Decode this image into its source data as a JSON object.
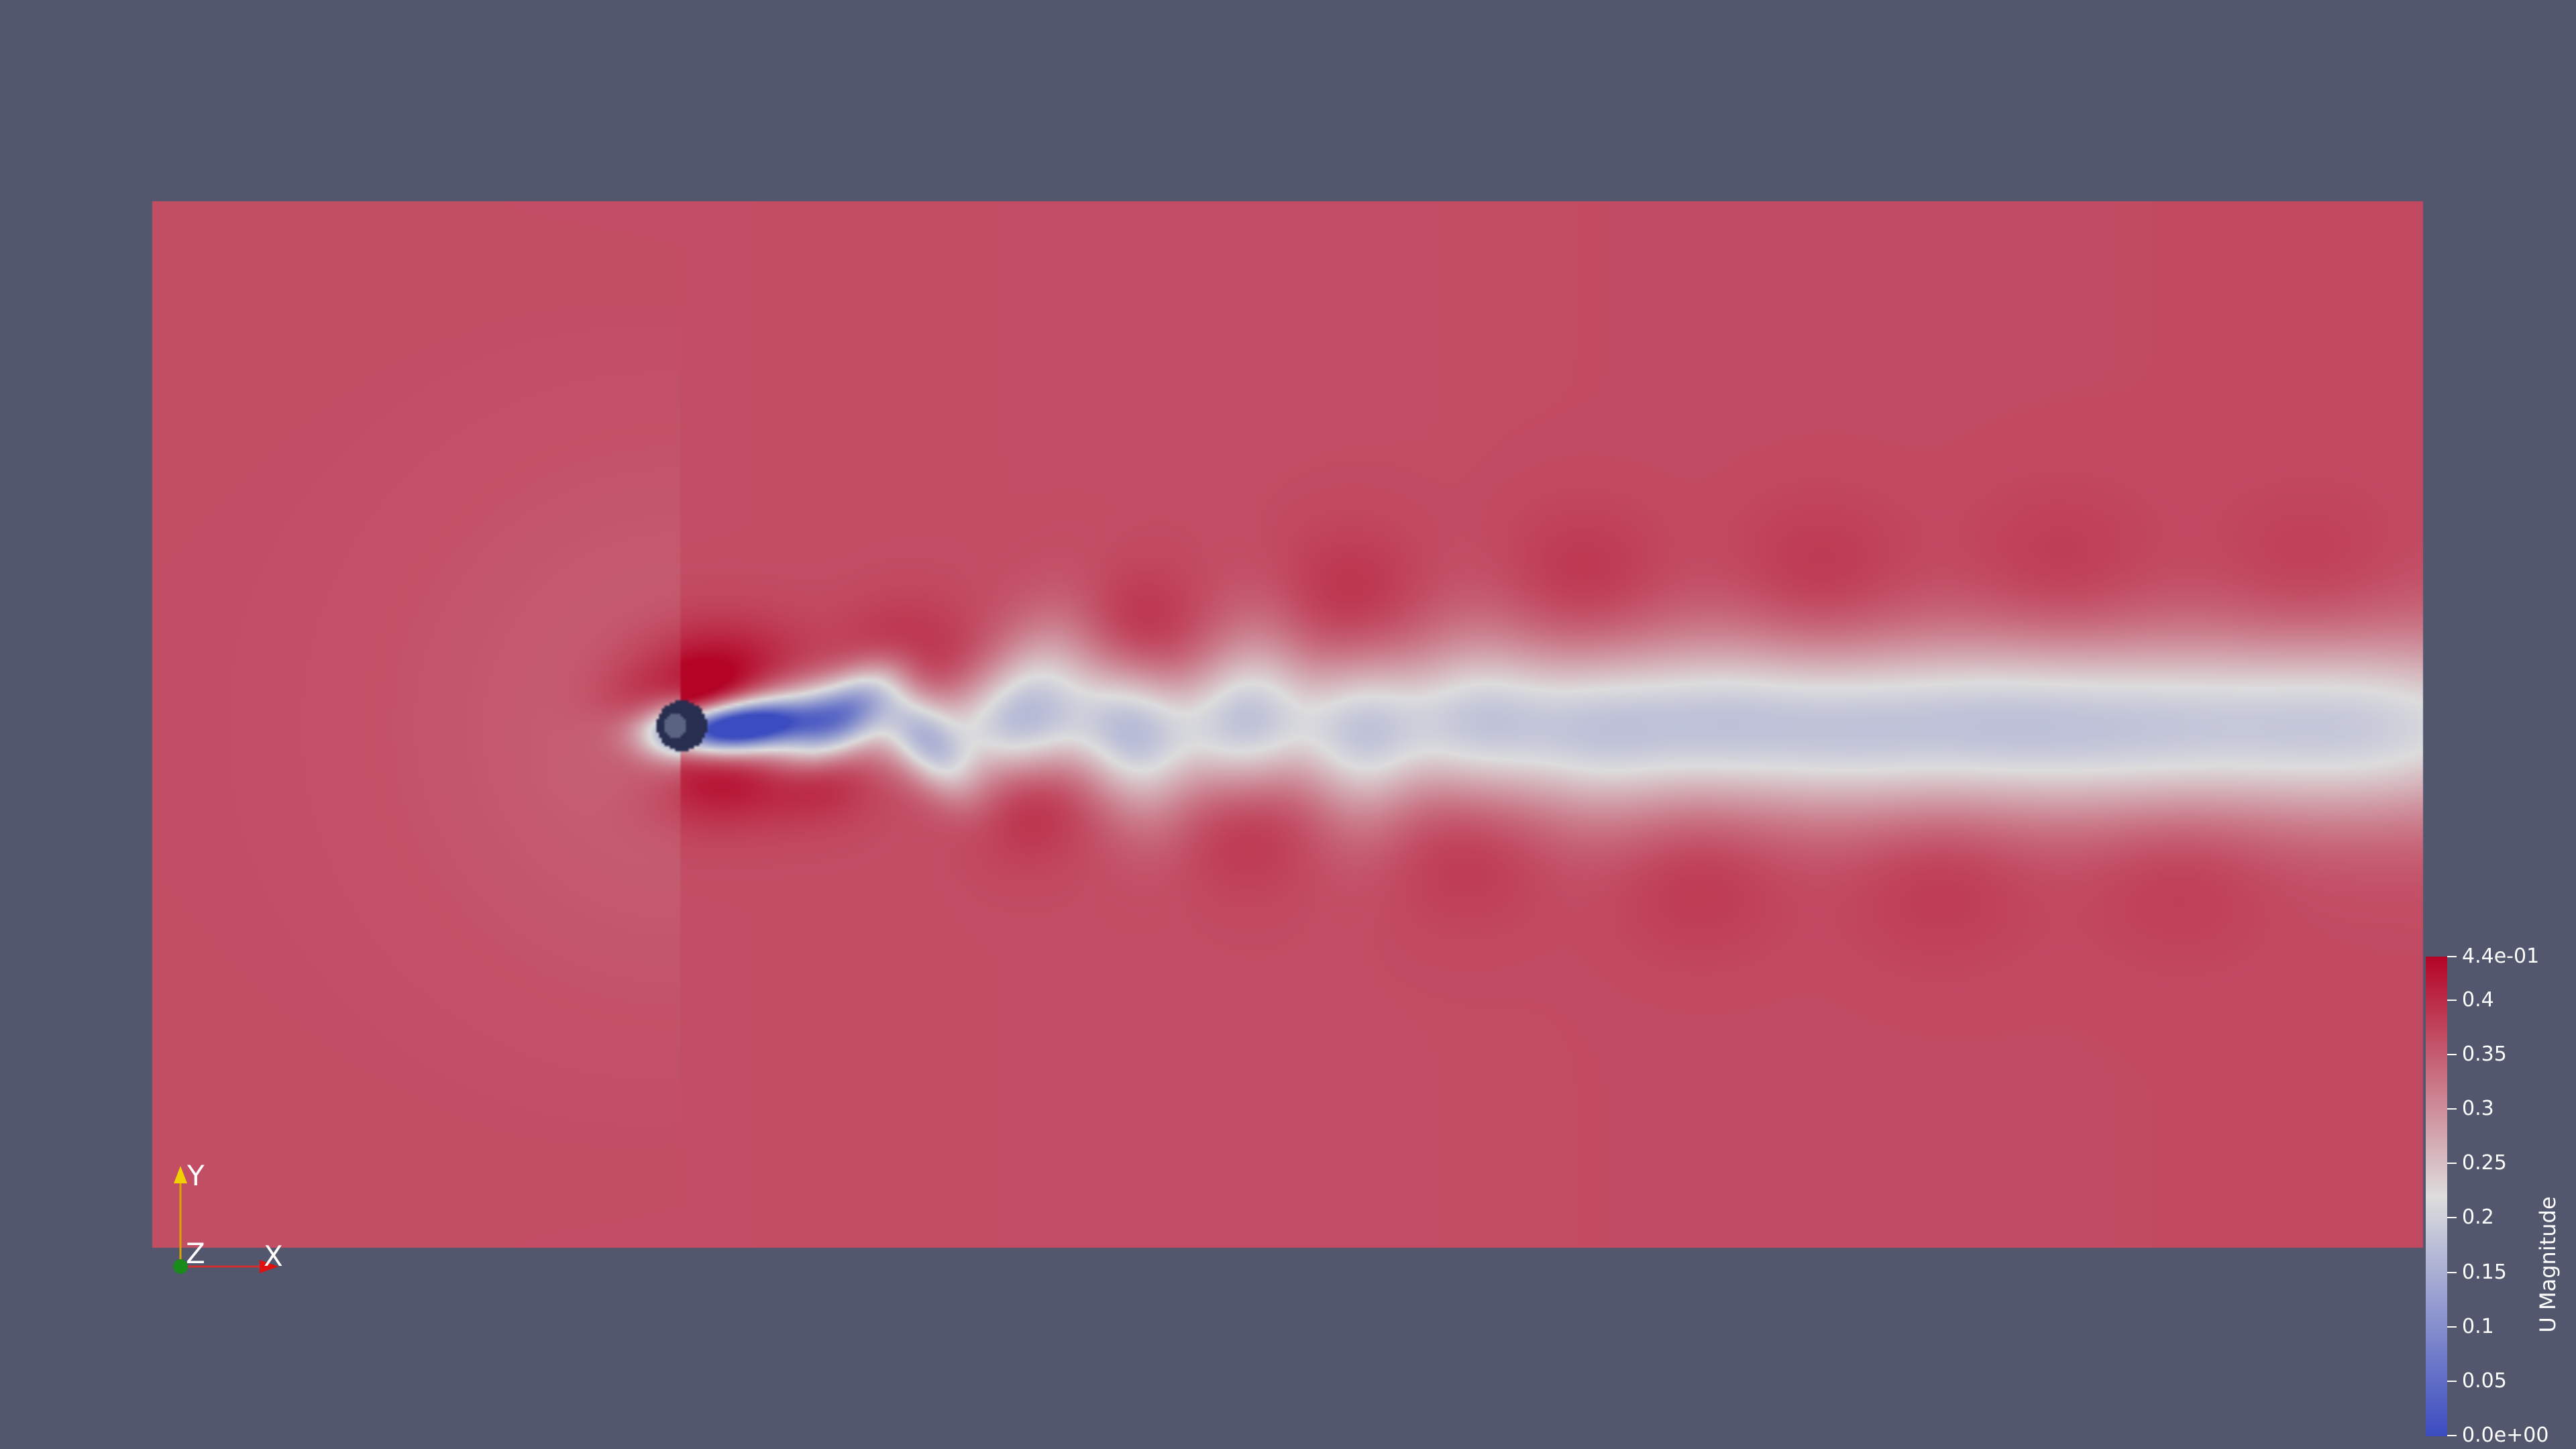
{
  "view": {
    "background_color": "#52576e",
    "field_colormap": "Cool to Warm"
  },
  "colorbar": {
    "title": "U Magnitude",
    "range": [
      0.0,
      0.44
    ],
    "colors": {
      "min": "#3b4cc0",
      "mid": "#dddddd",
      "max": "#b40426"
    },
    "ticks": [
      {
        "value": 0.44,
        "label": "4.4e-01"
      },
      {
        "value": 0.4,
        "label": "0.4"
      },
      {
        "value": 0.35,
        "label": "0.35"
      },
      {
        "value": 0.3,
        "label": "0.3"
      },
      {
        "value": 0.25,
        "label": "0.25"
      },
      {
        "value": 0.2,
        "label": "0.2"
      },
      {
        "value": 0.15,
        "label": "0.15"
      },
      {
        "value": 0.1,
        "label": "0.1"
      },
      {
        "value": 0.05,
        "label": "0.05"
      },
      {
        "value": 0.0,
        "label": "0.0e+00"
      }
    ]
  },
  "axes": {
    "y_label": "Y",
    "z_label": "Z",
    "x_label": "X",
    "y_color": "#e8c800",
    "z_color": "#1a8a1a",
    "x_color": "#e01010"
  }
}
